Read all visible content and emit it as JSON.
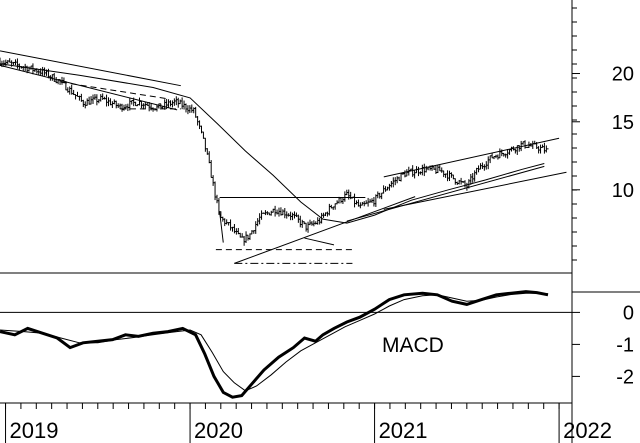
{
  "chart_data": [
    {
      "type": "bar",
      "panel": "price",
      "scale": "log",
      "ylim": [
        6.2,
        31
      ],
      "grid": false,
      "yticks": [
        {
          "label": "20",
          "value": 20
        },
        {
          "label": "15",
          "value": 15
        },
        {
          "label": "10",
          "value": 10
        }
      ],
      "xticks": [
        {
          "label": "2019",
          "value": 2019.0
        },
        {
          "label": "2020",
          "value": 2020.0
        },
        {
          "label": "2021",
          "value": 2021.0
        },
        {
          "label": "2022",
          "value": 2022.0
        }
      ],
      "xlim": [
        2018.97,
        2022.07
      ],
      "price_anchors": [
        {
          "t": 2018.97,
          "p": 21.5
        },
        {
          "t": 2019.1,
          "p": 20.8
        },
        {
          "t": 2019.2,
          "p": 20.2
        },
        {
          "t": 2019.3,
          "p": 19.0
        },
        {
          "t": 2019.42,
          "p": 16.8
        },
        {
          "t": 2019.52,
          "p": 17.2
        },
        {
          "t": 2019.62,
          "p": 16.4
        },
        {
          "t": 2019.72,
          "p": 16.9
        },
        {
          "t": 2019.82,
          "p": 16.3
        },
        {
          "t": 2019.92,
          "p": 16.9
        },
        {
          "t": 2020.02,
          "p": 16.0
        },
        {
          "t": 2020.08,
          "p": 13.0
        },
        {
          "t": 2020.13,
          "p": 10.0
        },
        {
          "t": 2020.16,
          "p": 8.5
        },
        {
          "t": 2020.22,
          "p": 8.0
        },
        {
          "t": 2020.28,
          "p": 7.4
        },
        {
          "t": 2020.32,
          "p": 7.6
        },
        {
          "t": 2020.38,
          "p": 8.5
        },
        {
          "t": 2020.46,
          "p": 8.9
        },
        {
          "t": 2020.55,
          "p": 8.6
        },
        {
          "t": 2020.63,
          "p": 8.0
        },
        {
          "t": 2020.7,
          "p": 8.3
        },
        {
          "t": 2020.78,
          "p": 9.2
        },
        {
          "t": 2020.85,
          "p": 9.7
        },
        {
          "t": 2020.92,
          "p": 9.0
        },
        {
          "t": 2021.0,
          "p": 9.4
        },
        {
          "t": 2021.08,
          "p": 10.3
        },
        {
          "t": 2021.16,
          "p": 11.0
        },
        {
          "t": 2021.26,
          "p": 11.3
        },
        {
          "t": 2021.36,
          "p": 11.2
        },
        {
          "t": 2021.44,
          "p": 10.6
        },
        {
          "t": 2021.5,
          "p": 10.2
        },
        {
          "t": 2021.56,
          "p": 11.3
        },
        {
          "t": 2021.64,
          "p": 12.2
        },
        {
          "t": 2021.72,
          "p": 12.6
        },
        {
          "t": 2021.8,
          "p": 13.1
        },
        {
          "t": 2021.88,
          "p": 12.9
        },
        {
          "t": 2021.94,
          "p": 12.6
        }
      ],
      "trendlines": [
        {
          "style": "solid",
          "from": {
            "t": 2018.97,
            "p": 22.9
          },
          "to": {
            "t": 2019.95,
            "p": 18.6
          }
        },
        {
          "style": "solid",
          "from": {
            "t": 2018.97,
            "p": 21.0
          },
          "to": {
            "t": 2019.93,
            "p": 16.1
          }
        },
        {
          "style": "dashed",
          "from": {
            "t": 2019.3,
            "p": 19.0
          },
          "to": {
            "t": 2019.88,
            "p": 17.2
          }
        },
        {
          "style": "dashed",
          "from": {
            "t": 2019.62,
            "p": 16.2
          },
          "to": {
            "t": 2019.95,
            "p": 16.2
          }
        },
        {
          "style": "solid",
          "from": {
            "t": 2020.16,
            "p": 9.55
          },
          "to": {
            "t": 2020.95,
            "p": 9.55
          }
        },
        {
          "style": "solid",
          "from": {
            "t": 2020.16,
            "p": 8.8
          },
          "to": {
            "t": 2020.18,
            "p": 7.3
          }
        },
        {
          "style": "dashed",
          "from": {
            "t": 2020.14,
            "p": 7.0
          },
          "to": {
            "t": 2020.88,
            "p": 7.0
          }
        },
        {
          "style": "dashdot",
          "from": {
            "t": 2020.24,
            "p": 6.45
          },
          "to": {
            "t": 2020.88,
            "p": 6.45
          }
        },
        {
          "style": "solid",
          "from": {
            "t": 2020.24,
            "p": 6.45
          },
          "to": {
            "t": 2021.22,
            "p": 9.6
          }
        },
        {
          "style": "solid",
          "from": {
            "t": 2021.05,
            "p": 10.8
          },
          "to": {
            "t": 2022.0,
            "p": 13.6
          }
        },
        {
          "style": "solid",
          "from": {
            "t": 2021.05,
            "p": 8.9
          },
          "to": {
            "t": 2022.04,
            "p": 11.1
          }
        },
        {
          "style": "solid",
          "from": {
            "t": 2020.85,
            "p": 8.3
          },
          "to": {
            "t": 2021.92,
            "p": 11.5
          }
        },
        {
          "style": "solid",
          "from": {
            "t": 2020.62,
            "p": 7.5
          },
          "to": {
            "t": 2020.78,
            "p": 7.2
          }
        }
      ],
      "moving_average": [
        {
          "t": 2018.97,
          "p": 21.2
        },
        {
          "t": 2019.4,
          "p": 19.8
        },
        {
          "t": 2019.8,
          "p": 18.4
        },
        {
          "t": 2020.0,
          "p": 17.3
        },
        {
          "t": 2020.15,
          "p": 14.8
        },
        {
          "t": 2020.3,
          "p": 12.6
        },
        {
          "t": 2020.45,
          "p": 10.9
        },
        {
          "t": 2020.6,
          "p": 9.3
        },
        {
          "t": 2020.72,
          "p": 8.4
        },
        {
          "t": 2020.85,
          "p": 8.2
        },
        {
          "t": 2021.0,
          "p": 8.6
        },
        {
          "t": 2021.2,
          "p": 9.4
        },
        {
          "t": 2021.4,
          "p": 10.0
        },
        {
          "t": 2021.6,
          "p": 10.6
        },
        {
          "t": 2021.8,
          "p": 11.3
        },
        {
          "t": 2021.92,
          "p": 11.7
        }
      ]
    },
    {
      "type": "line",
      "panel": "indicator",
      "label": "MACD",
      "ylim": [
        -2.8,
        1.2
      ],
      "grid": false,
      "yticks": [
        {
          "label": "0",
          "value": 0
        },
        {
          "label": "-1",
          "value": -1
        },
        {
          "label": "-2",
          "value": -2
        }
      ],
      "reference_lines": [
        0
      ],
      "series": [
        {
          "weight": "thick",
          "points": [
            {
              "t": 2018.97,
              "v": -0.6
            },
            {
              "t": 2019.05,
              "v": -0.7
            },
            {
              "t": 2019.12,
              "v": -0.5
            },
            {
              "t": 2019.2,
              "v": -0.65
            },
            {
              "t": 2019.28,
              "v": -0.8
            },
            {
              "t": 2019.35,
              "v": -1.1
            },
            {
              "t": 2019.42,
              "v": -0.95
            },
            {
              "t": 2019.5,
              "v": -0.9
            },
            {
              "t": 2019.58,
              "v": -0.85
            },
            {
              "t": 2019.65,
              "v": -0.7
            },
            {
              "t": 2019.72,
              "v": -0.75
            },
            {
              "t": 2019.8,
              "v": -0.65
            },
            {
              "t": 2019.88,
              "v": -0.6
            },
            {
              "t": 2019.96,
              "v": -0.5
            },
            {
              "t": 2020.03,
              "v": -0.7
            },
            {
              "t": 2020.08,
              "v": -1.3
            },
            {
              "t": 2020.13,
              "v": -2.0
            },
            {
              "t": 2020.18,
              "v": -2.5
            },
            {
              "t": 2020.23,
              "v": -2.65
            },
            {
              "t": 2020.28,
              "v": -2.6
            },
            {
              "t": 2020.34,
              "v": -2.2
            },
            {
              "t": 2020.4,
              "v": -1.8
            },
            {
              "t": 2020.48,
              "v": -1.4
            },
            {
              "t": 2020.56,
              "v": -1.1
            },
            {
              "t": 2020.62,
              "v": -0.8
            },
            {
              "t": 2020.68,
              "v": -0.9
            },
            {
              "t": 2020.72,
              "v": -0.7
            },
            {
              "t": 2020.78,
              "v": -0.5
            },
            {
              "t": 2020.85,
              "v": -0.3
            },
            {
              "t": 2020.92,
              "v": -0.15
            },
            {
              "t": 2021.0,
              "v": 0.1
            },
            {
              "t": 2021.08,
              "v": 0.4
            },
            {
              "t": 2021.16,
              "v": 0.55
            },
            {
              "t": 2021.26,
              "v": 0.6
            },
            {
              "t": 2021.34,
              "v": 0.55
            },
            {
              "t": 2021.42,
              "v": 0.35
            },
            {
              "t": 2021.5,
              "v": 0.25
            },
            {
              "t": 2021.58,
              "v": 0.4
            },
            {
              "t": 2021.66,
              "v": 0.55
            },
            {
              "t": 2021.74,
              "v": 0.6
            },
            {
              "t": 2021.82,
              "v": 0.65
            },
            {
              "t": 2021.88,
              "v": 0.62
            },
            {
              "t": 2021.94,
              "v": 0.55
            }
          ]
        },
        {
          "weight": "thin",
          "points": [
            {
              "t": 2018.97,
              "v": -0.55
            },
            {
              "t": 2019.1,
              "v": -0.6
            },
            {
              "t": 2019.2,
              "v": -0.65
            },
            {
              "t": 2019.3,
              "v": -0.8
            },
            {
              "t": 2019.4,
              "v": -0.95
            },
            {
              "t": 2019.5,
              "v": -0.95
            },
            {
              "t": 2019.6,
              "v": -0.85
            },
            {
              "t": 2019.7,
              "v": -0.78
            },
            {
              "t": 2019.8,
              "v": -0.7
            },
            {
              "t": 2019.9,
              "v": -0.62
            },
            {
              "t": 2020.0,
              "v": -0.55
            },
            {
              "t": 2020.06,
              "v": -0.7
            },
            {
              "t": 2020.12,
              "v": -1.25
            },
            {
              "t": 2020.18,
              "v": -1.85
            },
            {
              "t": 2020.24,
              "v": -2.2
            },
            {
              "t": 2020.3,
              "v": -2.45
            },
            {
              "t": 2020.36,
              "v": -2.3
            },
            {
              "t": 2020.44,
              "v": -1.95
            },
            {
              "t": 2020.52,
              "v": -1.55
            },
            {
              "t": 2020.6,
              "v": -1.2
            },
            {
              "t": 2020.68,
              "v": -0.95
            },
            {
              "t": 2020.76,
              "v": -0.7
            },
            {
              "t": 2020.84,
              "v": -0.45
            },
            {
              "t": 2020.92,
              "v": -0.25
            },
            {
              "t": 2021.0,
              "v": -0.05
            },
            {
              "t": 2021.08,
              "v": 0.2
            },
            {
              "t": 2021.16,
              "v": 0.4
            },
            {
              "t": 2021.26,
              "v": 0.52
            },
            {
              "t": 2021.34,
              "v": 0.55
            },
            {
              "t": 2021.42,
              "v": 0.45
            },
            {
              "t": 2021.5,
              "v": 0.35
            },
            {
              "t": 2021.58,
              "v": 0.38
            },
            {
              "t": 2021.66,
              "v": 0.48
            },
            {
              "t": 2021.74,
              "v": 0.56
            },
            {
              "t": 2021.82,
              "v": 0.6
            },
            {
              "t": 2021.9,
              "v": 0.6
            },
            {
              "t": 2021.94,
              "v": 0.58
            }
          ]
        }
      ]
    }
  ]
}
